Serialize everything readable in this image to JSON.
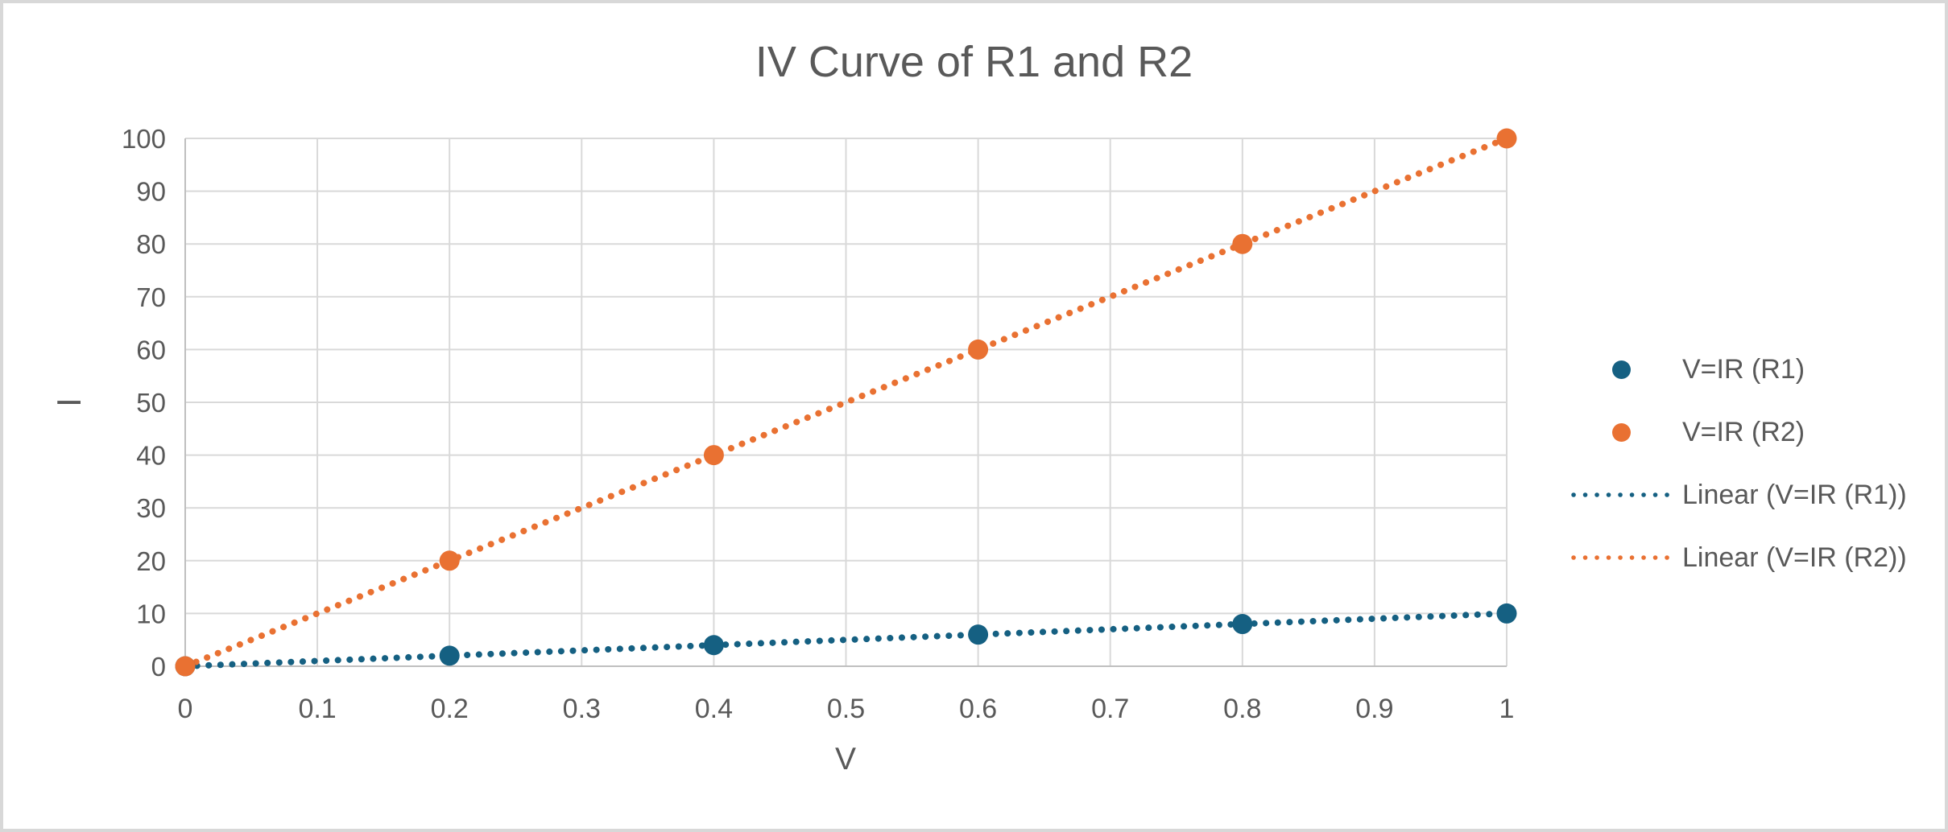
{
  "figure": {
    "title": "IV Curve of R1 and R2"
  },
  "colors": {
    "series_r1_blue": "#156082",
    "series_r2_orange": "#E97132",
    "text": "#595959",
    "gridline": "#D9D9D9",
    "axis_line": "#BFBFBF",
    "background": "#FFFFFF",
    "outer_border": "#D8D8D8"
  },
  "chart_data": {
    "type": "scatter",
    "title": "IV Curve of R1 and R2",
    "xlabel": "V",
    "ylabel": "I",
    "xlim": [
      0,
      1
    ],
    "ylim": [
      0,
      100
    ],
    "grid": true,
    "legend_position": "right-center",
    "x_ticks": [
      0,
      0.1,
      0.2,
      0.3,
      0.4,
      0.5,
      0.6,
      0.7,
      0.8,
      0.9,
      1
    ],
    "x_tick_labels": [
      "0",
      "0.1",
      "0.2",
      "0.3",
      "0.4",
      "0.5",
      "0.6",
      "0.7",
      "0.8",
      "0.9",
      "1"
    ],
    "y_ticks": [
      0,
      10,
      20,
      30,
      40,
      50,
      60,
      70,
      80,
      90,
      100
    ],
    "y_tick_labels": [
      "0",
      "10",
      "20",
      "30",
      "40",
      "50",
      "60",
      "70",
      "80",
      "90",
      "100"
    ],
    "series": [
      {
        "name": "V=IR (R1)",
        "color": "#156082",
        "marker": "circle",
        "x": [
          0,
          0.2,
          0.4,
          0.6,
          0.8,
          1
        ],
        "y": [
          0,
          2,
          4,
          6,
          8,
          10
        ]
      },
      {
        "name": "V=IR (R2)",
        "color": "#E97132",
        "marker": "circle",
        "x": [
          0,
          0.2,
          0.4,
          0.6,
          0.8,
          1
        ],
        "y": [
          0,
          20,
          40,
          60,
          80,
          100
        ]
      }
    ],
    "trendlines": [
      {
        "name": "Linear (V=IR (R1))",
        "color": "#156082",
        "style": "round-dot",
        "from": [
          0,
          0
        ],
        "to": [
          1,
          10
        ]
      },
      {
        "name": "Linear (V=IR (R2))",
        "color": "#E97132",
        "style": "round-dot",
        "from": [
          0,
          0
        ],
        "to": [
          1,
          100
        ]
      }
    ],
    "legend": [
      {
        "label": "V=IR (R1)",
        "swatch": "dot",
        "color": "#156082"
      },
      {
        "label": "V=IR (R2)",
        "swatch": "dot",
        "color": "#E97132"
      },
      {
        "label": "Linear (V=IR (R1))",
        "swatch": "dotted-line",
        "color": "#156082"
      },
      {
        "label": "Linear (V=IR (R2))",
        "swatch": "dotted-line",
        "color": "#E97132"
      }
    ]
  }
}
